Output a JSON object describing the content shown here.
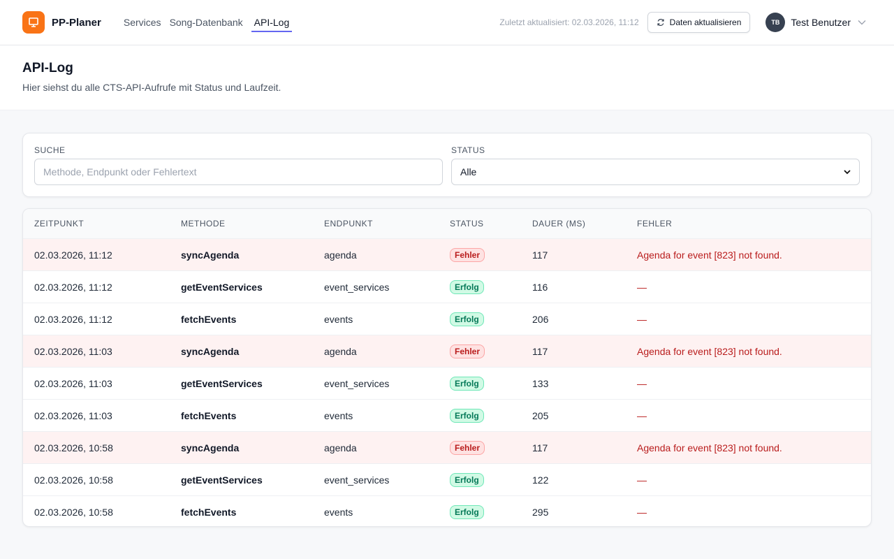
{
  "header": {
    "app_name": "PP-Planer",
    "nav": [
      "Services",
      "Song-Datenbank",
      "API-Log"
    ],
    "last_updated": "Zuletzt aktualisiert: 02.03.2026, 11:12",
    "refresh_button": "Daten aktualisieren",
    "user_initials": "TB",
    "user_name": "Test Benutzer"
  },
  "page": {
    "title": "API-Log",
    "subtitle": "Hier siehst du alle CTS-API-Aufrufe mit Status und Laufzeit."
  },
  "filters": {
    "search_label": "SUCHE",
    "search_placeholder": "Methode, Endpunkt oder Fehlertext",
    "status_label": "STATUS",
    "status_value": "Alle"
  },
  "table": {
    "columns": [
      "ZEITPUNKT",
      "METHODE",
      "ENDPUNKT",
      "STATUS",
      "DAUER (MS)",
      "FEHLER"
    ],
    "rows": [
      [
        "02.03.2026, 11:12",
        "syncAgenda",
        "agenda",
        "Fehler",
        "117",
        "Agenda for event [823] not found."
      ],
      [
        "02.03.2026, 11:12",
        "getEventServices",
        "event_services",
        "Erfolg",
        "116",
        "—"
      ],
      [
        "02.03.2026, 11:12",
        "fetchEvents",
        "events",
        "Erfolg",
        "206",
        "—"
      ],
      [
        "02.03.2026, 11:03",
        "syncAgenda",
        "agenda",
        "Fehler",
        "117",
        "Agenda for event [823] not found."
      ],
      [
        "02.03.2026, 11:03",
        "getEventServices",
        "event_services",
        "Erfolg",
        "133",
        "—"
      ],
      [
        "02.03.2026, 11:03",
        "fetchEvents",
        "events",
        "Erfolg",
        "205",
        "—"
      ],
      [
        "02.03.2026, 10:58",
        "syncAgenda",
        "agenda",
        "Fehler",
        "117",
        "Agenda for event [823] not found."
      ],
      [
        "02.03.2026, 10:58",
        "getEventServices",
        "event_services",
        "Erfolg",
        "122",
        "—"
      ],
      [
        "02.03.2026, 10:58",
        "fetchEvents",
        "events",
        "Erfolg",
        "295",
        "—"
      ]
    ]
  }
}
